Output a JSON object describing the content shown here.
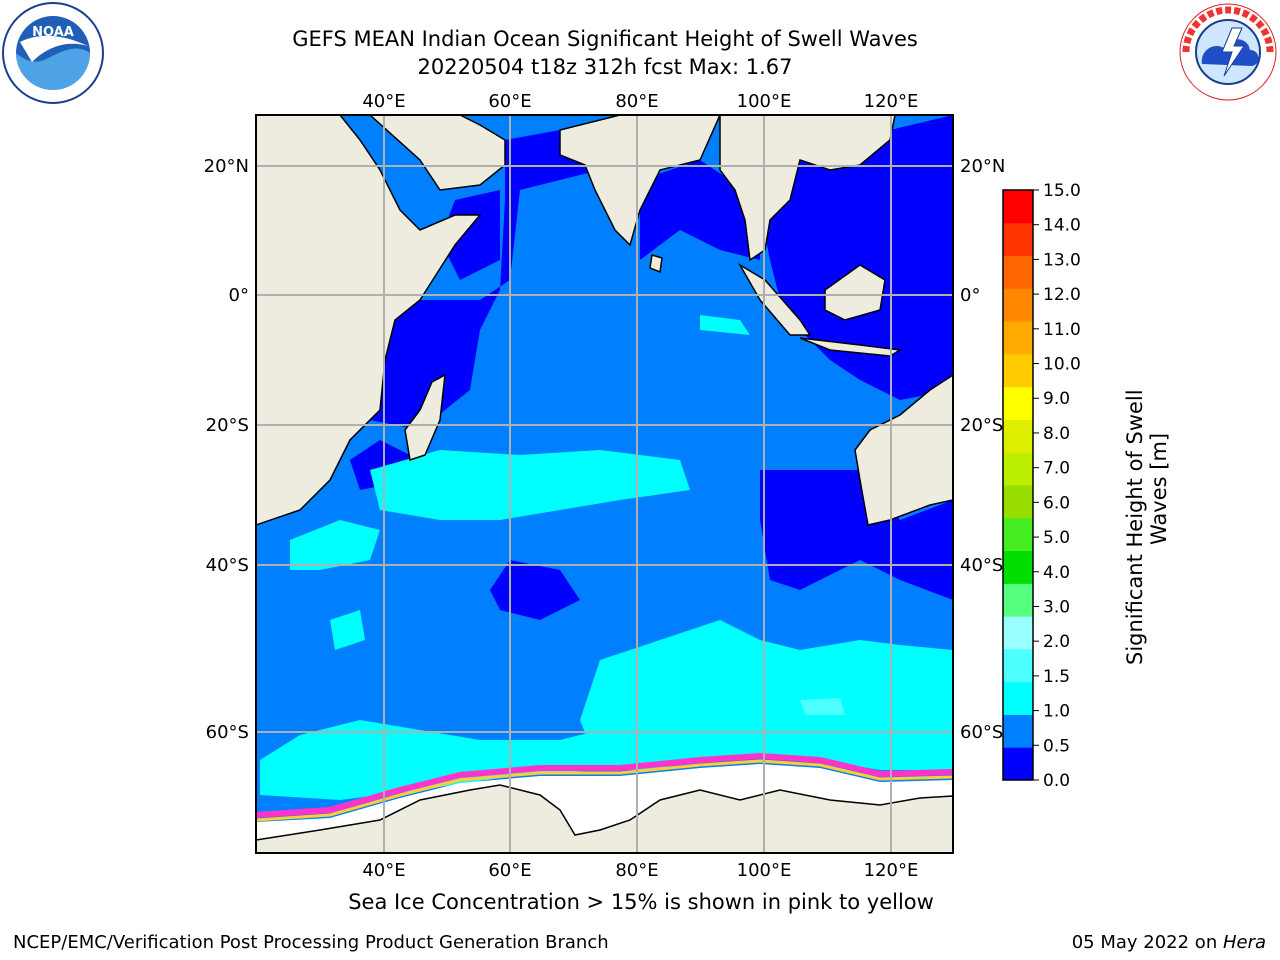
{
  "header": {
    "title_line1": "GEFS MEAN Indian Ocean Significant Height of Swell Waves",
    "title_line2": "20220504 t18z 312h fcst   Max: 1.67"
  },
  "logos": {
    "left_icon": "noaa-logo",
    "left_text": "NOAA",
    "left_ring_text": "NATIONAL OCEANIC AND ATMOSPHERIC ADMINISTRATION · U.S. DEPARTMENT OF COMMERCE",
    "right_icon": "national-weather-service-logo",
    "right_ring_text": "NATIONAL WEATHER SERVICE"
  },
  "map": {
    "lon_labels": [
      "40°E",
      "60°E",
      "80°E",
      "100°E",
      "120°E"
    ],
    "lat_labels": [
      "20°N",
      "0°",
      "20°S",
      "40°S",
      "60°S"
    ],
    "colors": {
      "land": "#eeecde",
      "ice": "#ffffff",
      "grid": "#b0b0b0",
      "ice_edge": [
        "#ff33cc",
        "#ffcc33"
      ]
    }
  },
  "colorbar": {
    "label": "Significant Height of Swell Waves [m]",
    "ticks": [
      "0.0",
      "0.5",
      "1.0",
      "1.5",
      "2.0",
      "3.0",
      "4.0",
      "5.0",
      "6.0",
      "7.0",
      "8.0",
      "9.0",
      "10.0",
      "11.0",
      "12.0",
      "13.0",
      "14.0",
      "15.0"
    ],
    "colors": [
      "#0000ff",
      "#0080ff",
      "#00ffff",
      "#4dffff",
      "#99ffff",
      "#55ff80",
      "#00dd00",
      "#44ee22",
      "#99dd00",
      "#bbee00",
      "#ddee00",
      "#ffff00",
      "#ffcc00",
      "#ffaa00",
      "#ff8800",
      "#ff6600",
      "#ff3300",
      "#ff0000"
    ]
  },
  "notes": {
    "sea_ice": "Sea Ice Concentration > 15% is shown in pink to yellow"
  },
  "footer": {
    "left": "NCEP/EMC/Verification Post Processing Product Generation Branch",
    "date": "05 May 2022 on ",
    "machine": "Hera"
  }
}
